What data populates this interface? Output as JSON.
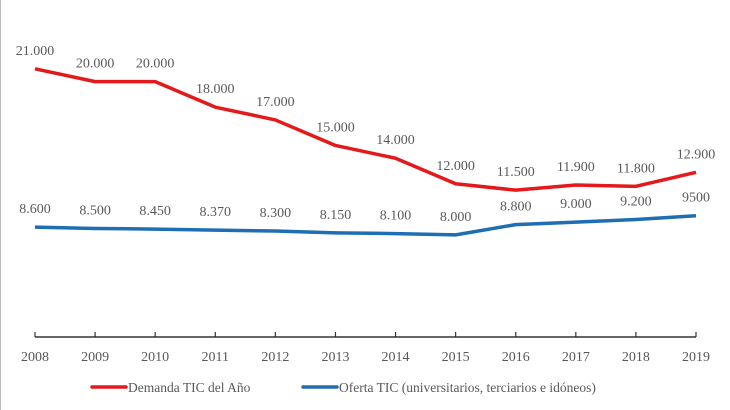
{
  "chart_data": {
    "type": "line",
    "title": "",
    "xlabel": "",
    "ylabel": "",
    "x": [
      "2008",
      "2009",
      "2010",
      "2011",
      "2012",
      "2013",
      "2014",
      "2015",
      "2016",
      "2017",
      "2018",
      "2019"
    ],
    "ylim": [
      0,
      26000
    ],
    "grid": false,
    "legend_position": "bottom",
    "series": [
      {
        "name": "Demanda TIC del Año",
        "color": "#e3191c",
        "values": [
          21000,
          20000,
          20000,
          18000,
          17000,
          15000,
          14000,
          12000,
          11500,
          11900,
          11800,
          12900
        ],
        "labels": [
          "21.000",
          "20.000",
          "20.000",
          "18.000",
          "17.000",
          "15.000",
          "14.000",
          "12.000",
          "11.500",
          "11.900",
          "11.800",
          "12.900"
        ]
      },
      {
        "name": "Oferta TIC (universitarios, terciarios e idóneos)",
        "color": "#1f6eb4",
        "values": [
          8600,
          8500,
          8450,
          8370,
          8300,
          8150,
          8100,
          8000,
          8800,
          9000,
          9200,
          9500
        ],
        "labels": [
          "8.600",
          "8.500",
          "8.450",
          "8.370",
          "8.300",
          "8.150",
          "8.100",
          "8.000",
          "8.800",
          "9.000",
          "9.200",
          "9500"
        ]
      }
    ]
  }
}
